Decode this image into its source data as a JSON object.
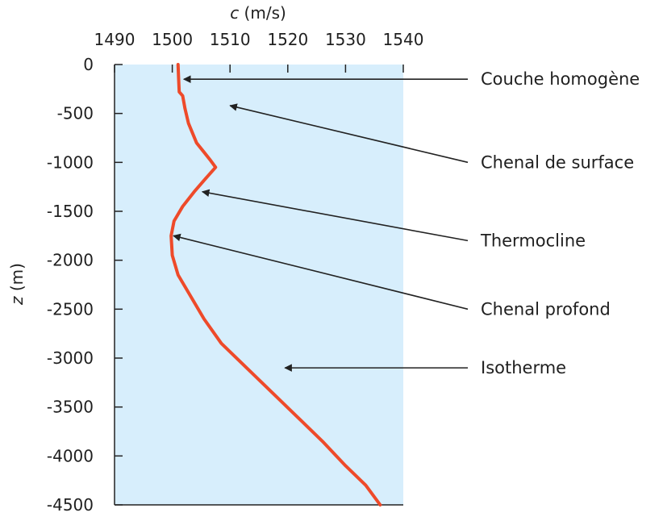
{
  "chart_data": {
    "type": "line",
    "xlabel": "c (m/s)",
    "ylabel": "z (m)",
    "xlim": [
      1490,
      1540
    ],
    "ylim": [
      -4500,
      0
    ],
    "x_ticks": [
      1490,
      1500,
      1510,
      1520,
      1530,
      1540
    ],
    "y_ticks": [
      0,
      -500,
      -1000,
      -1500,
      -2000,
      -2500,
      -3000,
      -3500,
      -4000,
      -4500
    ],
    "grid": false,
    "colors": {
      "background": "#d7eefc",
      "curve": "#ee4a2a",
      "axis": "#222222",
      "text": "#1f1f1f"
    },
    "series": [
      {
        "values": [
          {
            "x": 1501.0,
            "y": 0
          },
          {
            "x": 1501.1,
            "y": -150
          },
          {
            "x": 1501.2,
            "y": -280
          },
          {
            "x": 1501.8,
            "y": -320
          },
          {
            "x": 1502.2,
            "y": -450
          },
          {
            "x": 1502.8,
            "y": -600
          },
          {
            "x": 1504.2,
            "y": -800
          },
          {
            "x": 1506.5,
            "y": -970
          },
          {
            "x": 1507.5,
            "y": -1050
          },
          {
            "x": 1506.0,
            "y": -1150
          },
          {
            "x": 1503.8,
            "y": -1300
          },
          {
            "x": 1501.8,
            "y": -1450
          },
          {
            "x": 1500.3,
            "y": -1600
          },
          {
            "x": 1499.8,
            "y": -1750
          },
          {
            "x": 1500.0,
            "y": -1950
          },
          {
            "x": 1501.0,
            "y": -2150
          },
          {
            "x": 1503.0,
            "y": -2350
          },
          {
            "x": 1505.5,
            "y": -2600
          },
          {
            "x": 1508.5,
            "y": -2850
          },
          {
            "x": 1512.0,
            "y": -3050
          },
          {
            "x": 1515.5,
            "y": -3250
          },
          {
            "x": 1519.0,
            "y": -3450
          },
          {
            "x": 1522.5,
            "y": -3650
          },
          {
            "x": 1526.0,
            "y": -3850
          },
          {
            "x": 1530.0,
            "y": -4100
          },
          {
            "x": 1533.5,
            "y": -4300
          },
          {
            "x": 1536.0,
            "y": -4500
          }
        ]
      }
    ],
    "annotations": [
      {
        "text": "Couche homogène",
        "point": {
          "x": 1502.0,
          "y": -150
        },
        "label_y": -150
      },
      {
        "text": "Chenal de surface",
        "point": {
          "x": 1510.0,
          "y": -420
        },
        "label_y": -1000
      },
      {
        "text": "Thermocline",
        "point": {
          "x": 1505.2,
          "y": -1300
        },
        "label_y": -1800
      },
      {
        "text": "Chenal profond",
        "point": {
          "x": 1500.2,
          "y": -1750
        },
        "label_y": -2500
      },
      {
        "text": "Isotherme",
        "point": {
          "x": 1519.5,
          "y": -3100
        },
        "label_y": -3100
      }
    ]
  }
}
